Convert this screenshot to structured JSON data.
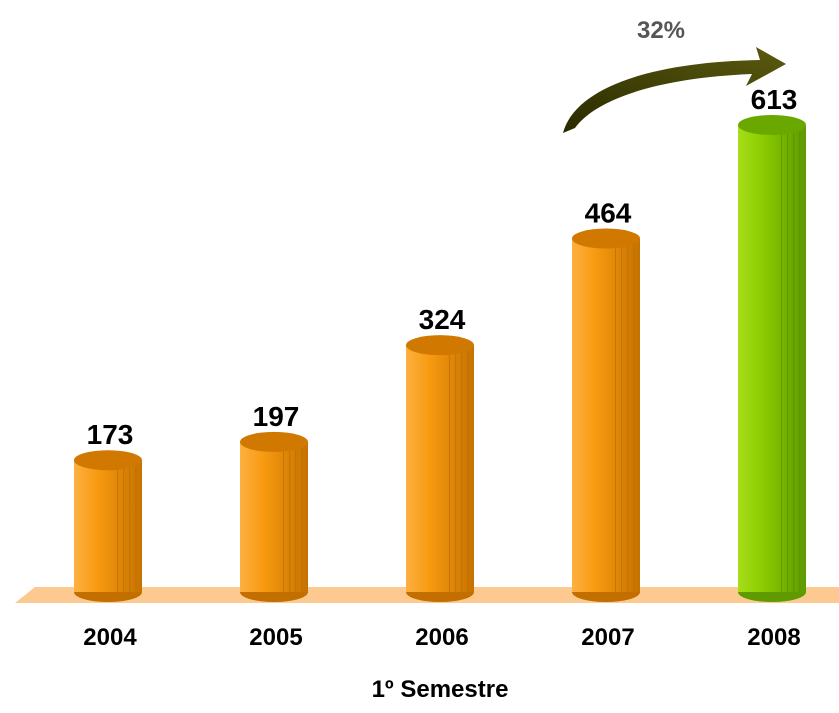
{
  "chart_data": {
    "type": "bar",
    "categories": [
      "2004",
      "2005",
      "2006",
      "2007",
      "2008"
    ],
    "values": [
      173,
      197,
      324,
      464,
      613
    ],
    "value_labels": [
      "173",
      "197",
      "324",
      "464",
      "613"
    ],
    "xlabel": "1º Semestre",
    "ylabel": "",
    "ylim": [
      0,
      613
    ],
    "grid": false,
    "colors": {
      "bar": "#f79a10",
      "bar_dark": "#c26f00",
      "bar_top": "#d07800",
      "highlight_bar": "#8ccc00",
      "highlight_bar_dark": "#5e9a00",
      "highlight_top": "#6aa800",
      "floor": "#fcc990",
      "arrow": "#3c3c00"
    },
    "highlight_index": 4,
    "annotation": {
      "label": "32%",
      "icon": "curved-arrow-icon",
      "from_index": 3,
      "to_index": 4
    }
  }
}
